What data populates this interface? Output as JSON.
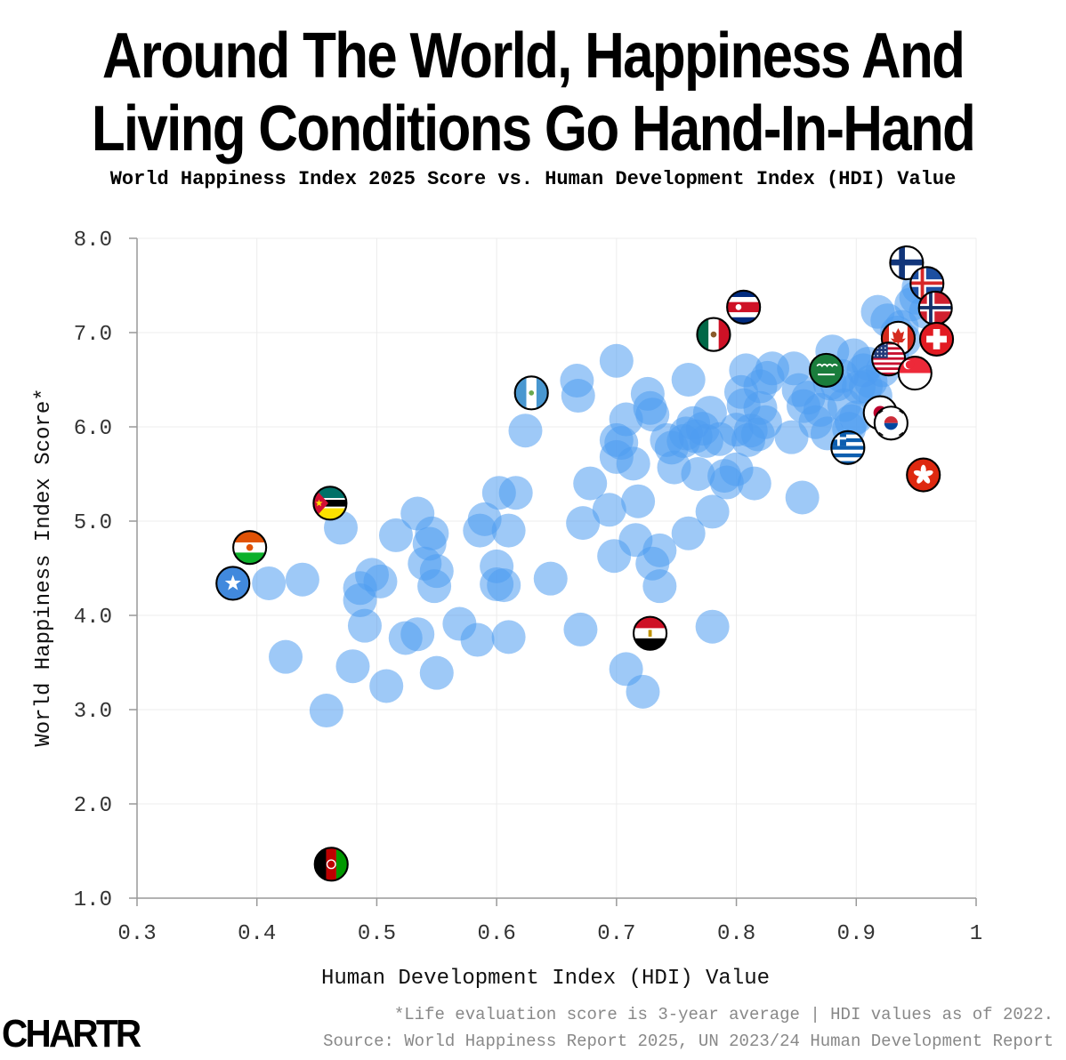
{
  "header": {
    "title_line1": "Around The World, Happiness And",
    "title_line2": "Living Conditions Go Hand-In-Hand",
    "subtitle": "World Happiness Index 2025 Score vs. Human Development Index (HDI) Value"
  },
  "footer": {
    "footnote": "*Life evaluation score is 3-year average | HDI values as of 2022.",
    "source": "Source: World Happiness Report 2025, UN 2023/24 Human Development Report",
    "logo": "CHARTR"
  },
  "colors": {
    "bubble": "#4f9cf0",
    "grid": "#ececec",
    "axis": "#999999"
  },
  "chart_data": {
    "type": "scatter",
    "title": "World Happiness Index 2025 Score vs. Human Development Index (HDI) Value",
    "xlabel": "Human Development Index (HDI) Value",
    "ylabel": "World Happiness Index Score*",
    "xlim": [
      0.3,
      1.0
    ],
    "ylim": [
      1.0,
      8.0
    ],
    "x_ticks": [
      0.3,
      0.4,
      0.5,
      0.6,
      0.7,
      0.8,
      0.9,
      1.0
    ],
    "x_tick_labels": [
      "0.3",
      "0.4",
      "0.5",
      "0.6",
      "0.7",
      "0.8",
      "0.9",
      "1"
    ],
    "y_ticks": [
      1,
      2,
      3,
      4,
      5,
      6,
      7,
      8
    ],
    "y_tick_labels": [
      "1.0",
      "2.0",
      "3.0",
      "4.0",
      "5.0",
      "6.0",
      "7.0",
      "8.0"
    ],
    "grid": true,
    "points": [
      [
        0.41,
        4.34
      ],
      [
        0.438,
        4.38
      ],
      [
        0.424,
        3.56
      ],
      [
        0.458,
        2.99
      ],
      [
        0.47,
        4.93
      ],
      [
        0.48,
        3.46
      ],
      [
        0.486,
        4.29
      ],
      [
        0.486,
        4.16
      ],
      [
        0.49,
        3.89
      ],
      [
        0.496,
        4.43
      ],
      [
        0.503,
        4.36
      ],
      [
        0.508,
        3.25
      ],
      [
        0.516,
        4.85
      ],
      [
        0.524,
        3.76
      ],
      [
        0.534,
        3.8
      ],
      [
        0.534,
        5.08
      ],
      [
        0.54,
        4.55
      ],
      [
        0.544,
        4.76
      ],
      [
        0.546,
        4.87
      ],
      [
        0.548,
        4.31
      ],
      [
        0.55,
        4.47
      ],
      [
        0.55,
        3.39
      ],
      [
        0.569,
        3.91
      ],
      [
        0.584,
        3.74
      ],
      [
        0.586,
        4.9
      ],
      [
        0.59,
        5.02
      ],
      [
        0.6,
        4.33
      ],
      [
        0.6,
        4.52
      ],
      [
        0.602,
        5.3
      ],
      [
        0.606,
        4.32
      ],
      [
        0.61,
        3.77
      ],
      [
        0.61,
        4.9
      ],
      [
        0.616,
        5.3
      ],
      [
        0.624,
        5.96
      ],
      [
        0.645,
        4.39
      ],
      [
        0.667,
        6.49
      ],
      [
        0.668,
        6.33
      ],
      [
        0.67,
        3.85
      ],
      [
        0.672,
        4.98
      ],
      [
        0.678,
        5.4
      ],
      [
        0.694,
        5.12
      ],
      [
        0.698,
        4.63
      ],
      [
        0.7,
        6.7
      ],
      [
        0.7,
        5.68
      ],
      [
        0.7,
        5.86
      ],
      [
        0.704,
        5.83
      ],
      [
        0.708,
        6.08
      ],
      [
        0.708,
        3.43
      ],
      [
        0.714,
        5.61
      ],
      [
        0.716,
        4.8
      ],
      [
        0.718,
        5.21
      ],
      [
        0.722,
        3.19
      ],
      [
        0.726,
        6.35
      ],
      [
        0.728,
        6.2
      ],
      [
        0.73,
        4.55
      ],
      [
        0.73,
        6.13
      ],
      [
        0.736,
        4.69
      ],
      [
        0.736,
        4.31
      ],
      [
        0.742,
        5.86
      ],
      [
        0.746,
        5.78
      ],
      [
        0.748,
        5.57
      ],
      [
        0.756,
        5.85
      ],
      [
        0.758,
        5.93
      ],
      [
        0.76,
        4.87
      ],
      [
        0.76,
        6.5
      ],
      [
        0.764,
        6.04
      ],
      [
        0.766,
        5.9
      ],
      [
        0.768,
        5.5
      ],
      [
        0.772,
        5.98
      ],
      [
        0.775,
        5.85
      ],
      [
        0.778,
        6.15
      ],
      [
        0.78,
        3.88
      ],
      [
        0.78,
        5.1
      ],
      [
        0.786,
        5.87
      ],
      [
        0.79,
        5.48
      ],
      [
        0.792,
        5.41
      ],
      [
        0.8,
        5.55
      ],
      [
        0.8,
        5.97
      ],
      [
        0.804,
        6.37
      ],
      [
        0.806,
        6.23
      ],
      [
        0.808,
        6.6
      ],
      [
        0.81,
        5.86
      ],
      [
        0.812,
        5.96
      ],
      [
        0.815,
        5.4
      ],
      [
        0.818,
        5.92
      ],
      [
        0.82,
        6.2
      ],
      [
        0.82,
        6.43
      ],
      [
        0.824,
        6.05
      ],
      [
        0.826,
        6.52
      ],
      [
        0.83,
        6.62
      ],
      [
        0.846,
        5.89
      ],
      [
        0.848,
        6.62
      ],
      [
        0.852,
        6.39
      ],
      [
        0.855,
        5.25
      ],
      [
        0.856,
        6.22
      ],
      [
        0.86,
        6.31
      ],
      [
        0.866,
        6.05
      ],
      [
        0.87,
        6.18
      ],
      [
        0.876,
        5.93
      ],
      [
        0.878,
        6.46
      ],
      [
        0.88,
        6.8
      ],
      [
        0.884,
        6.45
      ],
      [
        0.888,
        6.54
      ],
      [
        0.89,
        6.23
      ],
      [
        0.894,
        5.98
      ],
      [
        0.896,
        6.06
      ],
      [
        0.898,
        6.76
      ],
      [
        0.9,
        6.1
      ],
      [
        0.902,
        6.42
      ],
      [
        0.906,
        6.6
      ],
      [
        0.908,
        6.43
      ],
      [
        0.91,
        6.67
      ],
      [
        0.912,
        6.48
      ],
      [
        0.916,
        6.33
      ],
      [
        0.918,
        7.22
      ],
      [
        0.922,
        6.6
      ],
      [
        0.926,
        7.13
      ],
      [
        0.93,
        6.76
      ],
      [
        0.934,
        7.0
      ],
      [
        0.938,
        7.06
      ],
      [
        0.94,
        6.92
      ],
      [
        0.946,
        7.3
      ],
      [
        0.95,
        7.37
      ],
      [
        0.952,
        7.48
      ],
      [
        0.958,
        7.22
      ]
    ],
    "flags": [
      {
        "country": "Finland",
        "x": 0.942,
        "y": 7.74,
        "flag": "finland-flag"
      },
      {
        "country": "Iceland",
        "x": 0.959,
        "y": 7.52,
        "flag": "iceland-flag"
      },
      {
        "country": "Norway",
        "x": 0.966,
        "y": 7.26,
        "flag": "norway-flag"
      },
      {
        "country": "Canada",
        "x": 0.935,
        "y": 6.94,
        "flag": "canada-flag"
      },
      {
        "country": "Switzerland",
        "x": 0.967,
        "y": 6.93,
        "flag": "switzerland-flag"
      },
      {
        "country": "United States",
        "x": 0.927,
        "y": 6.72,
        "flag": "us-flag"
      },
      {
        "country": "Singapore",
        "x": 0.949,
        "y": 6.57,
        "flag": "singapore-flag"
      },
      {
        "country": "Saudi Arabia",
        "x": 0.875,
        "y": 6.6,
        "flag": "saudi-arabia-flag"
      },
      {
        "country": "Japan",
        "x": 0.92,
        "y": 6.15,
        "flag": "japan-flag"
      },
      {
        "country": "South Korea",
        "x": 0.929,
        "y": 6.04,
        "flag": "south-korea-flag"
      },
      {
        "country": "Greece",
        "x": 0.893,
        "y": 5.78,
        "flag": "greece-flag"
      },
      {
        "country": "Hong Kong",
        "x": 0.956,
        "y": 5.49,
        "flag": "hong-kong-flag"
      },
      {
        "country": "Costa Rica",
        "x": 0.806,
        "y": 7.27,
        "flag": "costa-rica-flag"
      },
      {
        "country": "Mexico",
        "x": 0.781,
        "y": 6.98,
        "flag": "mexico-flag"
      },
      {
        "country": "Guatemala",
        "x": 0.629,
        "y": 6.36,
        "flag": "guatemala-flag"
      },
      {
        "country": "Egypt",
        "x": 0.728,
        "y": 3.81,
        "flag": "egypt-flag"
      },
      {
        "country": "Mozambique",
        "x": 0.461,
        "y": 5.19,
        "flag": "mozambique-flag"
      },
      {
        "country": "Niger",
        "x": 0.394,
        "y": 4.72,
        "flag": "niger-flag"
      },
      {
        "country": "Somalia",
        "x": 0.38,
        "y": 4.34,
        "flag": "somalia-flag"
      },
      {
        "country": "Afghanistan",
        "x": 0.462,
        "y": 1.36,
        "flag": "afghanistan-flag"
      }
    ]
  }
}
